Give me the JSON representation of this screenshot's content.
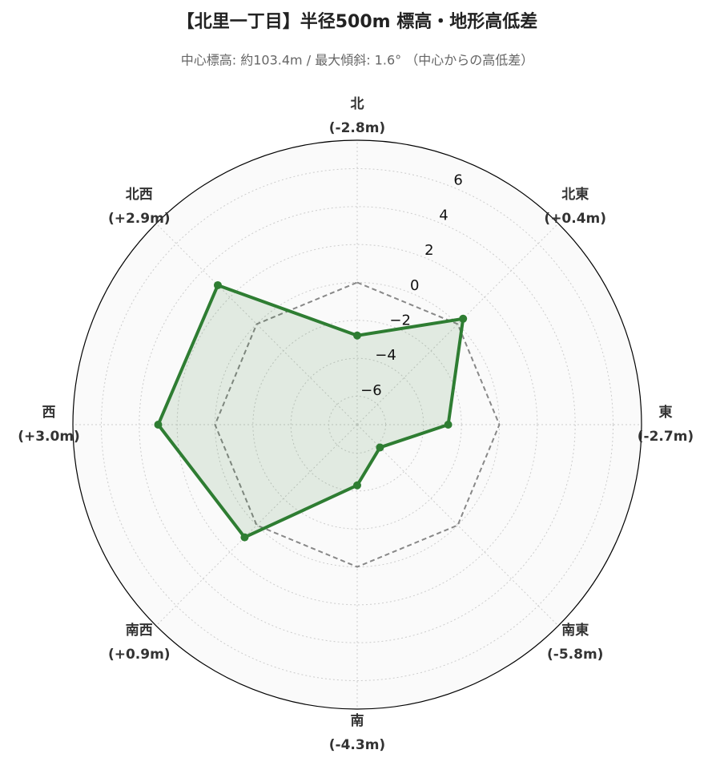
{
  "chart_data": {
    "type": "radar",
    "title": "【北里一丁目】半径500m 標高・地形高低差",
    "subtitle": "中心標高: 約103.4m / 最大傾斜: 1.6° （中心からの高低差）",
    "categories": [
      "北",
      "北東",
      "東",
      "南東",
      "南",
      "南西",
      "西",
      "北西"
    ],
    "values": [
      -2.8,
      0.4,
      -2.7,
      -5.8,
      -4.3,
      0.9,
      3.0,
      2.9
    ],
    "value_labels": [
      "(-2.8m)",
      "(+0.4m)",
      "(-2.7m)",
      "(-5.8m)",
      "(-4.3m)",
      "(+0.9m)",
      "(+3.0m)",
      "(+2.9m)"
    ],
    "color": "#2e7d32",
    "reference_value": 0,
    "ylim": [
      -7.5,
      7.5
    ],
    "yticks": [
      {
        "value": -6,
        "label": "−6"
      },
      {
        "value": -4,
        "label": "−4"
      },
      {
        "value": -2,
        "label": "−2"
      },
      0,
      2,
      4,
      6
    ],
    "grid": true
  }
}
